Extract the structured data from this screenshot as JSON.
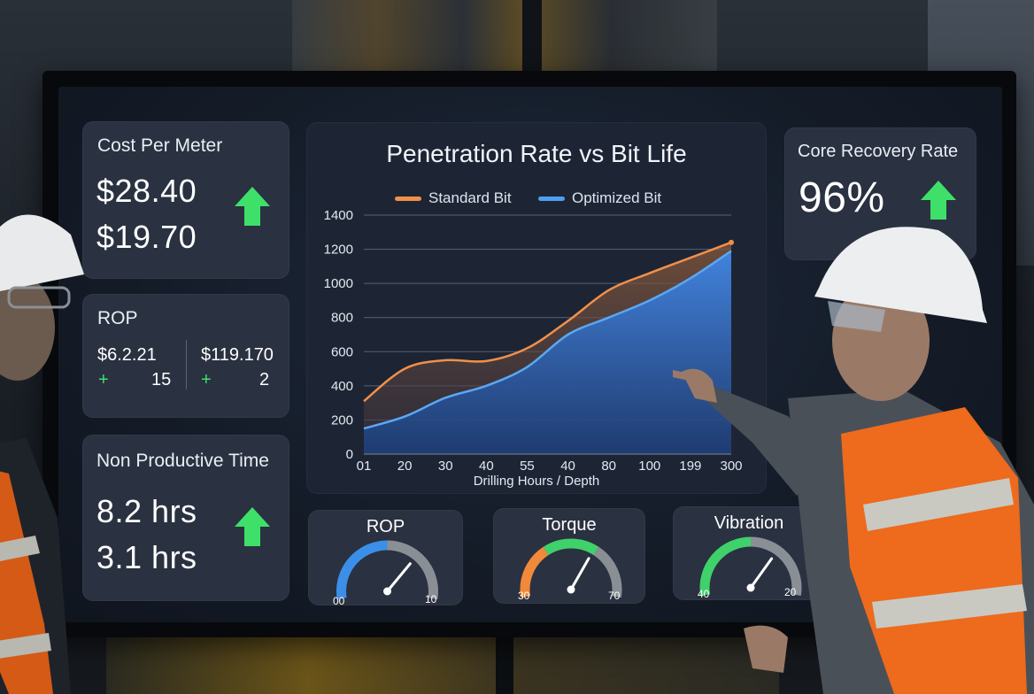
{
  "cards": {
    "cost_per_meter": {
      "title": "Cost Per Meter",
      "value1": "$28.40",
      "value2": "$19.70"
    },
    "rop": {
      "title": "ROP",
      "left_value": "$6.2.21",
      "left_plus": "+",
      "left_count": "15",
      "right_value": "$119.170",
      "right_plus": "+",
      "right_count": "2"
    },
    "non_productive_time": {
      "title": "Non Productive Time",
      "value1": "8.2 hrs",
      "value2": "3.1 hrs"
    },
    "core_recovery_rate": {
      "title": "Core Recovery Rate",
      "value": "96%"
    }
  },
  "gauges": [
    {
      "title": "ROP",
      "min_label": "00",
      "max_label": "10",
      "level": 0.7,
      "colors": [
        "#3b8fe8",
        "#8a8f96"
      ]
    },
    {
      "title": "Torque",
      "min_label": "30",
      "max_label": "70",
      "level": 0.65,
      "colors": [
        "#f08a3a",
        "#3fd16a",
        "#8a8f96"
      ]
    },
    {
      "title": "Vibration",
      "min_label": "40",
      "max_label": "20",
      "level": 0.68,
      "colors": [
        "#3fd16a",
        "#8a8f96"
      ]
    }
  ],
  "accent_colors": {
    "up_arrow": "#3ee06a",
    "standard": "#f0904a",
    "optimized": "#4f9ef0"
  },
  "chart_data": {
    "type": "area",
    "title": "Penetration Rate vs Bit Life",
    "xlabel": "Drilling Hours / Depth",
    "ylabel": "",
    "x_tick_labels": [
      "01",
      "20",
      "30",
      "40",
      "55",
      "40",
      "80",
      "100",
      "199",
      "300"
    ],
    "y_ticks": [
      0,
      200,
      400,
      600,
      800,
      1000,
      1200,
      1400
    ],
    "ylim": [
      0,
      1400
    ],
    "grid": true,
    "legend_position": "top",
    "series": [
      {
        "name": "Standard Bit",
        "values": [
          310,
          500,
          550,
          545,
          620,
          780,
          960,
          1060,
          1150,
          1240
        ]
      },
      {
        "name": "Optimized Bit",
        "values": [
          150,
          220,
          330,
          400,
          510,
          700,
          800,
          900,
          1030,
          1190
        ]
      }
    ]
  }
}
